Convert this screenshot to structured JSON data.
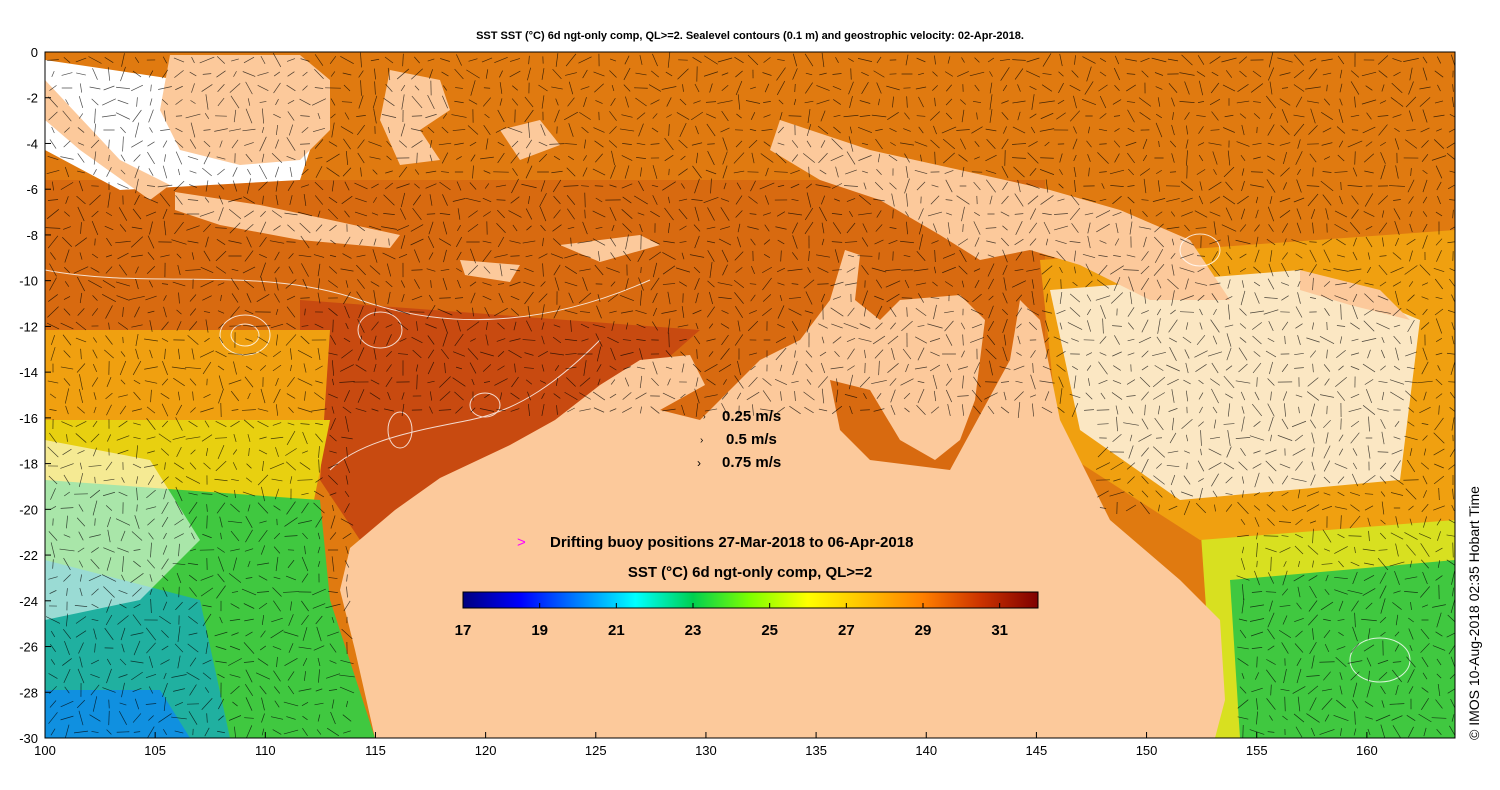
{
  "title": "SST SST (°C) 6d ngt-only comp, QL>=2. Sealevel contours (0.1 m) and geostrophic velocity: 02-Apr-2018.",
  "side_stamp": "© IMOS 10-Aug-2018 02:35 Hobart Time",
  "map": {
    "lon_range": [
      100,
      164
    ],
    "lat_range": [
      -30,
      0
    ],
    "x_ticks": [
      "100",
      "105",
      "110",
      "115",
      "120",
      "125",
      "130",
      "135",
      "140",
      "145",
      "150",
      "155",
      "160"
    ],
    "y_ticks": [
      "0",
      "-2",
      "-4",
      "-6",
      "-8",
      "-10",
      "-12",
      "-14",
      "-16",
      "-18",
      "-20",
      "-22",
      "-24",
      "-26",
      "-28",
      "-30"
    ]
  },
  "velocity_key": {
    "items": [
      "0.25 m/s",
      "0.5 m/s",
      "0.75 m/s"
    ]
  },
  "buoy_legend": {
    "marker": ">",
    "text": "Drifting buoy positions 27-Mar-2018 to 06-Apr-2018",
    "marker_color": "#ff00ff"
  },
  "colorbar": {
    "title": "SST (°C) 6d ngt-only comp, QL>=2",
    "labels": [
      "17",
      "19",
      "21",
      "23",
      "25",
      "27",
      "29",
      "31"
    ],
    "stops": [
      "#00007f",
      "#0000ff",
      "#007fff",
      "#00ffff",
      "#00d050",
      "#7fff00",
      "#ffff00",
      "#ffc000",
      "#ff7f00",
      "#cc3300",
      "#7f0000"
    ]
  },
  "colors": {
    "land": "#fcc99b",
    "sst_warm": "#e07a10",
    "sst_hot": "#c84a10",
    "sst_mid": "#f0a010",
    "sst_cool": "#40d040",
    "sst_cold": "#10b0e0"
  }
}
